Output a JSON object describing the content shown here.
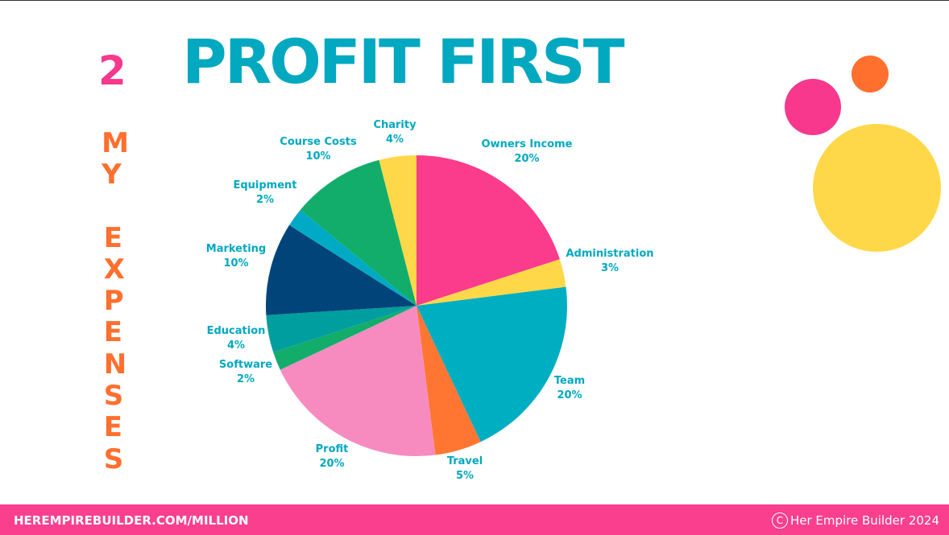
{
  "slide": {
    "number": "2",
    "title": "PROFIT FIRST",
    "vertical_word_1": "MY",
    "vertical_word_2": "EXPENSES"
  },
  "footer": {
    "url": "HEREMPIREBUILDER.COM/MILLION",
    "copyright_symbol": "C",
    "copyright": "Her Empire Builder 2024"
  },
  "colors": {
    "title": "#00a8c0",
    "number": "#f8388d",
    "vertical_text": "#ff6f2e",
    "labels": "#00a8c0",
    "footer_bg": "#fa3f8f",
    "decor_pink": "#f8388d",
    "decor_orange": "#ff6f2e",
    "decor_yellow": "#ffd84a"
  },
  "chart_data": {
    "type": "pie",
    "title": "",
    "slices": [
      {
        "label": "Owners Income",
        "value": 20,
        "display": "20%",
        "color": "#fb3b8b"
      },
      {
        "label": "Administration",
        "value": 3,
        "display": "3%",
        "color": "#ffd84a"
      },
      {
        "label": "Team",
        "value": 20,
        "display": "20%",
        "color": "#00aec2"
      },
      {
        "label": "Travel",
        "value": 5,
        "display": "5%",
        "color": "#ff7633"
      },
      {
        "label": "Profit",
        "value": 20,
        "display": "20%",
        "color": "#f78bc0"
      },
      {
        "label": "Software",
        "value": 2,
        "display": "2%",
        "color": "#12ad6a"
      },
      {
        "label": "Education",
        "value": 4,
        "display": "4%",
        "color": "#009e9e"
      },
      {
        "label": "Marketing",
        "value": 10,
        "display": "10%",
        "color": "#01447a"
      },
      {
        "label": "Equipment",
        "value": 2,
        "display": "2%",
        "color": "#00aac5"
      },
      {
        "label": "Course Costs",
        "value": 10,
        "display": "10%",
        "color": "#12ad6a"
      },
      {
        "label": "Charity",
        "value": 4,
        "display": "4%",
        "color": "#ffd84a"
      }
    ]
  }
}
